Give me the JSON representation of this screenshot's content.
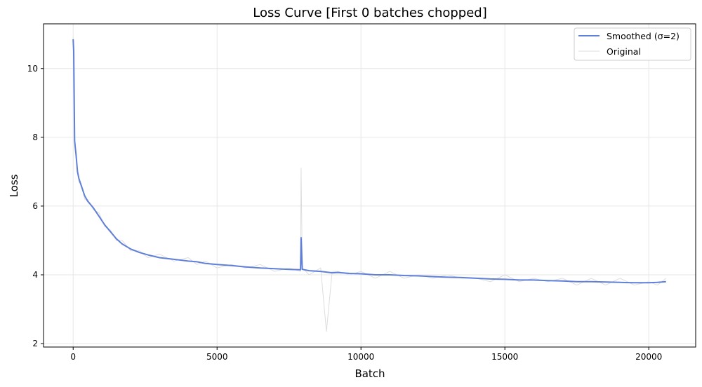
{
  "chart_data": {
    "type": "line",
    "title": "Loss Curve [First 0 batches chopped]",
    "xlabel": "Batch",
    "ylabel": "Loss",
    "xlim": [
      -1030,
      21630
    ],
    "ylim": [
      1.9,
      11.3
    ],
    "xticks": [
      0,
      5000,
      10000,
      15000,
      20000
    ],
    "yticks": [
      2,
      4,
      6,
      8,
      10
    ],
    "grid": true,
    "legend_position": "top-right",
    "series": [
      {
        "name": "Smoothed (σ=2)",
        "color": "#6080d8",
        "x": [
          0,
          20,
          50,
          80,
          100,
          150,
          200,
          300,
          400,
          500,
          700,
          900,
          1100,
          1300,
          1500,
          1700,
          2000,
          2300,
          2600,
          3000,
          3500,
          4000,
          4300,
          4600,
          5000,
          5500,
          6000,
          6500,
          7000,
          7500,
          7900,
          7920,
          7960,
          8200,
          8600,
          8800,
          9000,
          9200,
          9600,
          10000,
          10500,
          11000,
          11500,
          12000,
          12500,
          13000,
          13500,
          14000,
          14500,
          15000,
          15500,
          16000,
          16500,
          17000,
          17500,
          18000,
          18500,
          19000,
          19500,
          20000,
          20300,
          20600
        ],
        "y": [
          10.85,
          10.5,
          7.9,
          7.65,
          7.5,
          7.0,
          6.8,
          6.55,
          6.3,
          6.15,
          5.95,
          5.7,
          5.45,
          5.25,
          5.05,
          4.9,
          4.75,
          4.65,
          4.58,
          4.5,
          4.45,
          4.4,
          4.38,
          4.33,
          4.3,
          4.27,
          4.23,
          4.2,
          4.18,
          4.16,
          4.15,
          5.08,
          4.16,
          4.12,
          4.1,
          4.08,
          4.06,
          4.07,
          4.04,
          4.03,
          4.0,
          4.0,
          3.98,
          3.97,
          3.95,
          3.93,
          3.92,
          3.9,
          3.88,
          3.87,
          3.85,
          3.85,
          3.83,
          3.82,
          3.8,
          3.8,
          3.79,
          3.78,
          3.77,
          3.77,
          3.78,
          3.8
        ]
      },
      {
        "name": "Original",
        "color": "#dddddd",
        "x": [
          0,
          20,
          50,
          80,
          100,
          150,
          200,
          300,
          400,
          500,
          700,
          900,
          1100,
          1300,
          1500,
          1700,
          2000,
          2300,
          2600,
          3000,
          3500,
          4000,
          4300,
          4600,
          5000,
          5500,
          6000,
          6500,
          7000,
          7500,
          7900,
          7920,
          7960,
          8200,
          8600,
          8800,
          9000,
          9200,
          9600,
          10000,
          10500,
          11000,
          11500,
          12000,
          12500,
          13000,
          13500,
          14000,
          14500,
          15000,
          15500,
          16000,
          16500,
          17000,
          17500,
          18000,
          18500,
          19000,
          19500,
          20000,
          20300,
          20600
        ],
        "y": [
          10.9,
          10.3,
          7.8,
          7.7,
          7.4,
          7.1,
          6.7,
          6.6,
          6.2,
          6.2,
          5.9,
          5.8,
          5.4,
          5.3,
          5.0,
          5.0,
          4.7,
          4.7,
          4.5,
          4.6,
          4.4,
          4.5,
          4.3,
          4.4,
          4.2,
          4.3,
          4.2,
          4.3,
          4.1,
          4.2,
          4.1,
          7.1,
          4.2,
          4.0,
          4.2,
          2.35,
          4.1,
          4.1,
          4.0,
          4.1,
          3.9,
          4.1,
          3.9,
          4.0,
          3.9,
          4.0,
          3.9,
          3.9,
          3.8,
          4.0,
          3.8,
          3.9,
          3.8,
          3.9,
          3.7,
          3.9,
          3.7,
          3.9,
          3.7,
          3.8,
          3.7,
          3.9
        ]
      }
    ]
  }
}
